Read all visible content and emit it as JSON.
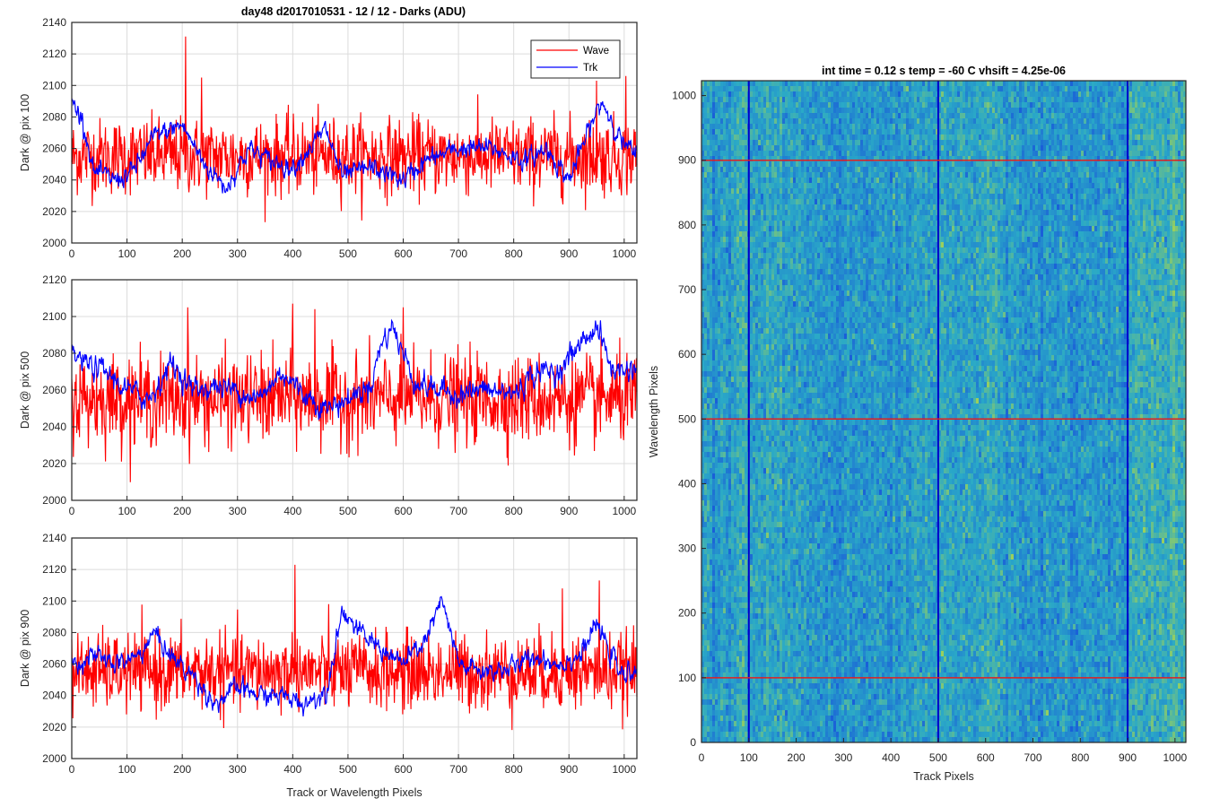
{
  "figure": {
    "title": "day48 d2017010531 - 12 / 12 - Darks (ADU)",
    "shared_xlabel": "Track or Wavelength Pixels"
  },
  "chart_data": [
    {
      "type": "line",
      "ylabel": "Dark @ pix 100",
      "xlim": [
        0,
        1023
      ],
      "ylim": [
        2000,
        2140
      ],
      "yticks": [
        2000,
        2020,
        2040,
        2060,
        2080,
        2100,
        2120,
        2140
      ],
      "xticks": [
        0,
        100,
        200,
        300,
        400,
        500,
        600,
        700,
        800,
        900,
        1000
      ],
      "grid": true,
      "legend": {
        "position": "top-right",
        "entries": [
          "Wave",
          "Trk"
        ]
      },
      "series": [
        {
          "name": "Wave",
          "color": "#ff0000",
          "mean": 2055,
          "spread": 12,
          "spikes": [
            [
              206,
              2131
            ],
            [
              235,
              2105
            ],
            [
              1003,
              2106
            ],
            [
              950,
              2103
            ]
          ]
        },
        {
          "name": "Trk",
          "color": "#0000ff",
          "mean": 2052,
          "spread": 6,
          "trend_x": [
            0,
            20,
            40,
            80,
            110,
            150,
            200,
            240,
            280,
            320,
            360,
            400,
            460,
            490,
            540,
            600,
            640,
            700,
            760,
            820,
            860,
            900,
            940,
            960,
            1000,
            1023
          ],
          "trend_y": [
            2090,
            2078,
            2045,
            2040,
            2045,
            2068,
            2075,
            2050,
            2035,
            2060,
            2052,
            2048,
            2072,
            2042,
            2048,
            2040,
            2052,
            2060,
            2060,
            2052,
            2060,
            2040,
            2075,
            2090,
            2062,
            2055
          ]
        }
      ]
    },
    {
      "type": "line",
      "ylabel": "Dark @ pix 500",
      "xlim": [
        0,
        1023
      ],
      "ylim": [
        2000,
        2120
      ],
      "yticks": [
        2000,
        2020,
        2040,
        2060,
        2080,
        2100,
        2120
      ],
      "xticks": [
        0,
        100,
        200,
        300,
        400,
        500,
        600,
        700,
        800,
        900,
        1000
      ],
      "grid": true,
      "series": [
        {
          "name": "Wave",
          "color": "#ff0000",
          "mean": 2055,
          "spread": 12,
          "spikes": [
            [
              210,
              2105
            ],
            [
              400,
              2107
            ],
            [
              440,
              2104
            ],
            [
              600,
              2105
            ]
          ]
        },
        {
          "name": "Trk",
          "color": "#0000ff",
          "mean": 2060,
          "spread": 6,
          "trend_x": [
            0,
            20,
            60,
            100,
            140,
            180,
            220,
            260,
            300,
            340,
            380,
            420,
            460,
            500,
            540,
            560,
            580,
            620,
            660,
            700,
            740,
            800,
            840,
            880,
            920,
            950,
            980,
            1023
          ],
          "trend_y": [
            2080,
            2075,
            2070,
            2060,
            2055,
            2075,
            2060,
            2062,
            2060,
            2055,
            2070,
            2058,
            2050,
            2055,
            2062,
            2085,
            2095,
            2065,
            2060,
            2058,
            2060,
            2058,
            2070,
            2070,
            2085,
            2095,
            2070,
            2072
          ]
        }
      ]
    },
    {
      "type": "line",
      "ylabel": "Dark @ pix 900",
      "xlabel": "Track or Wavelength Pixels",
      "xlim": [
        0,
        1023
      ],
      "ylim": [
        2000,
        2140
      ],
      "yticks": [
        2000,
        2020,
        2040,
        2060,
        2080,
        2100,
        2120,
        2140
      ],
      "xticks": [
        0,
        100,
        200,
        300,
        400,
        500,
        600,
        700,
        800,
        900,
        1000
      ],
      "grid": true,
      "series": [
        {
          "name": "Wave",
          "color": "#ff0000",
          "mean": 2055,
          "spread": 12,
          "spikes": [
            [
              404,
              2123
            ],
            [
              955,
              2113
            ],
            [
              888,
              2108
            ]
          ]
        },
        {
          "name": "Trk",
          "color": "#0000ff",
          "mean": 2055,
          "spread": 6,
          "trend_x": [
            0,
            40,
            80,
            120,
            150,
            180,
            220,
            260,
            300,
            340,
            380,
            420,
            460,
            490,
            520,
            560,
            600,
            640,
            670,
            700,
            740,
            800,
            840,
            880,
            920,
            950,
            1000,
            1023
          ],
          "trend_y": [
            2060,
            2065,
            2060,
            2065,
            2080,
            2065,
            2052,
            2035,
            2045,
            2040,
            2040,
            2035,
            2042,
            2095,
            2080,
            2070,
            2060,
            2075,
            2100,
            2060,
            2055,
            2058,
            2065,
            2060,
            2065,
            2085,
            2050,
            2060
          ]
        }
      ]
    },
    {
      "type": "heatmap",
      "title": "int time = 0.12 s    temp = -60 C    vhsift = 4.25e-06",
      "xlabel": "Track Pixels",
      "ylabel": "Wavelength Pixels",
      "xlim": [
        0,
        1023
      ],
      "ylim": [
        0,
        1023
      ],
      "xticks": [
        0,
        100,
        200,
        300,
        400,
        500,
        600,
        700,
        800,
        900,
        1000
      ],
      "yticks": [
        0,
        100,
        200,
        300,
        400,
        500,
        600,
        700,
        800,
        900,
        1000
      ],
      "colormap": {
        "low": "#1a5fd8",
        "mid": "#2aa9c7",
        "high": "#9ad05c"
      },
      "vertical_markers": {
        "x": [
          100,
          500,
          900
        ],
        "color": "#0000cc"
      },
      "horizontal_markers": {
        "y": [
          100,
          500,
          900
        ],
        "color": "#e02020"
      }
    }
  ]
}
